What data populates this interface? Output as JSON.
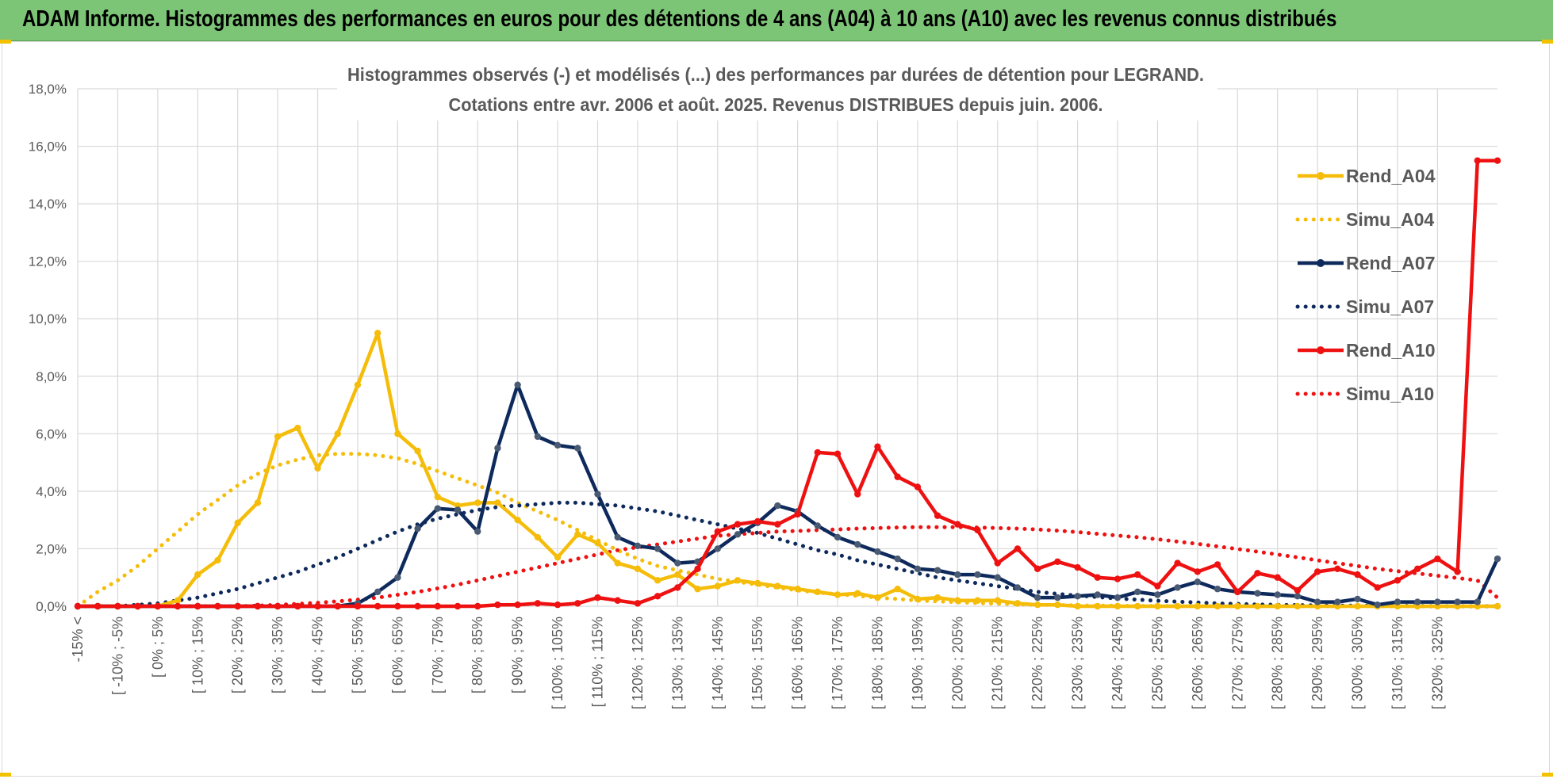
{
  "header": {
    "banner_title": "ADAM Informe. Histogrammes des performances en euros pour des détentions de 4 ans (A04) à 10 ans (A10) avec les revenus connus distribués"
  },
  "colors": {
    "banner": "#7cc576",
    "A04": "#f5bd0a",
    "A07": "#0e2a5c",
    "A07_marker": "#4a5a72",
    "A10": "#ee1111",
    "grid": "#d9d9d9"
  },
  "chart_data": {
    "type": "line",
    "title_line1": "Histogrammes observés (-) et modélisés (...) des performances par durées de détention pour LEGRAND.",
    "title_line2": "Cotations entre avr. 2006 et août. 2025. Revenus DISTRIBUES depuis juin. 2006.",
    "xlabel": "",
    "ylabel": "",
    "ylim": [
      0,
      18
    ],
    "y_ticks": [
      "0,0%",
      "2,0%",
      "4,0%",
      "6,0%",
      "8,0%",
      "10,0%",
      "12,0%",
      "14,0%",
      "16,0%",
      "18,0%"
    ],
    "grid": true,
    "legend_position": "top-right",
    "x_labels": [
      "-15% <",
      "[ -10% ; -5%",
      "[ 0% ; 5%",
      "[ 10% ; 15%",
      "[ 20% ; 25%",
      "[ 30% ; 35%",
      "[ 40% ; 45%",
      "[ 50% ; 55%",
      "[ 60% ; 65%",
      "[ 70% ; 75%",
      "[ 80% ; 85%",
      "[ 90% ; 95%",
      "[ 100% ; 105%",
      "[ 110% ; 115%",
      "[ 120% ; 125%",
      "[ 130% ; 135%",
      "[ 140% ; 145%",
      "[ 150% ; 155%",
      "[ 160% ; 165%",
      "[ 170% ; 175%",
      "[ 180% ; 185%",
      "[ 190% ; 195%",
      "[ 200% ; 205%",
      "[ 210% ; 215%",
      "[ 220% ; 225%",
      "[ 230% ; 235%",
      "[ 240% ; 245%",
      "[ 250% ; 255%",
      "[ 260% ; 265%",
      "[ 270% ; 275%",
      "[ 280% ; 285%",
      "[ 290% ; 295%",
      "[ 300% ; 305%",
      "[ 310% ; 315%",
      "[ 320% ; 325%"
    ],
    "series": [
      {
        "name": "Rend_A04",
        "style": "solid",
        "color": "#f5bd0a",
        "values": [
          0,
          0,
          0,
          0,
          0,
          0.2,
          1.1,
          1.6,
          2.9,
          3.6,
          5.9,
          6.2,
          4.8,
          6.0,
          7.7,
          9.5,
          6.0,
          5.4,
          3.8,
          3.5,
          3.6,
          3.6,
          3.0,
          2.4,
          1.7,
          2.5,
          2.2,
          1.5,
          1.3,
          0.9,
          1.1,
          0.6,
          0.7,
          0.9,
          0.8,
          0.7,
          0.6,
          0.5,
          0.4,
          0.45,
          0.3,
          0.6,
          0.25,
          0.3,
          0.2,
          0.2,
          0.2,
          0.1,
          0.05,
          0.05,
          0,
          0,
          0,
          0,
          0,
          0,
          0,
          0,
          0,
          0,
          0,
          0,
          0,
          0,
          0,
          0,
          0,
          0,
          0,
          0,
          0,
          0
        ]
      },
      {
        "name": "Simu_A04",
        "style": "dotted",
        "color": "#f5bd0a",
        "values": [
          0,
          0.5,
          0.9,
          1.4,
          2.0,
          2.6,
          3.2,
          3.7,
          4.2,
          4.6,
          4.9,
          5.1,
          5.25,
          5.3,
          5.3,
          5.25,
          5.15,
          4.95,
          4.7,
          4.45,
          4.2,
          3.95,
          3.6,
          3.3,
          3.0,
          2.65,
          2.3,
          1.95,
          1.65,
          1.4,
          1.25,
          1.1,
          0.95,
          0.85,
          0.75,
          0.65,
          0.55,
          0.48,
          0.42,
          0.36,
          0.3,
          0.25,
          0.2,
          0.17,
          0.14,
          0.11,
          0.09,
          0.07,
          0.05,
          0.04,
          0.03,
          0.02,
          0.02,
          0.01,
          0.01,
          0,
          0,
          0,
          0,
          0,
          0,
          0,
          0,
          0,
          0,
          0,
          0,
          0,
          0,
          0,
          0,
          0
        ]
      },
      {
        "name": "Rend_A07",
        "style": "solid",
        "color": "#0e2a5c",
        "values": [
          0,
          0,
          0,
          0,
          0,
          0,
          0,
          0,
          0,
          0,
          0,
          0,
          0,
          0,
          0.1,
          0.5,
          1.0,
          2.7,
          3.4,
          3.35,
          2.6,
          5.5,
          7.7,
          5.9,
          5.6,
          5.5,
          3.9,
          2.4,
          2.1,
          2.0,
          1.5,
          1.55,
          2.0,
          2.5,
          2.9,
          3.5,
          3.3,
          2.8,
          2.4,
          2.15,
          1.9,
          1.65,
          1.3,
          1.25,
          1.1,
          1.1,
          1.0,
          0.65,
          0.3,
          0.3,
          0.35,
          0.4,
          0.3,
          0.5,
          0.4,
          0.65,
          0.85,
          0.6,
          0.5,
          0.45,
          0.4,
          0.35,
          0.15,
          0.15,
          0.25,
          0.05,
          0.15,
          0.15,
          0.15,
          0.15,
          0.15,
          1.65
        ]
      },
      {
        "name": "Simu_A07",
        "style": "dotted",
        "color": "#0e2a5c",
        "values": [
          0,
          0,
          0,
          0.05,
          0.1,
          0.2,
          0.3,
          0.45,
          0.6,
          0.8,
          1.0,
          1.2,
          1.45,
          1.7,
          2.0,
          2.3,
          2.6,
          2.85,
          3.05,
          3.2,
          3.35,
          3.45,
          3.5,
          3.55,
          3.6,
          3.6,
          3.55,
          3.5,
          3.4,
          3.3,
          3.15,
          3.0,
          2.85,
          2.7,
          2.55,
          2.35,
          2.15,
          1.95,
          1.8,
          1.6,
          1.45,
          1.3,
          1.15,
          1.0,
          0.9,
          0.8,
          0.7,
          0.6,
          0.5,
          0.43,
          0.37,
          0.32,
          0.27,
          0.23,
          0.19,
          0.16,
          0.13,
          0.1,
          0.08,
          0.06,
          0.05,
          0.04,
          0.03,
          0.02,
          0.02,
          0.01,
          0.01,
          0.01,
          0,
          0,
          0,
          0
        ]
      },
      {
        "name": "Rend_A10",
        "style": "solid",
        "color": "#ee1111",
        "values": [
          0,
          0,
          0,
          0,
          0,
          0,
          0,
          0,
          0,
          0,
          0,
          0,
          0,
          0,
          0,
          0,
          0,
          0,
          0,
          0,
          0,
          0.05,
          0.05,
          0.1,
          0.05,
          0.1,
          0.3,
          0.2,
          0.1,
          0.35,
          0.65,
          1.3,
          2.6,
          2.85,
          2.95,
          2.85,
          3.2,
          5.35,
          5.3,
          3.9,
          5.55,
          4.5,
          4.15,
          3.15,
          2.85,
          2.65,
          1.5,
          2.0,
          1.3,
          1.55,
          1.35,
          1.0,
          0.95,
          1.1,
          0.7,
          1.5,
          1.2,
          1.45,
          0.5,
          1.15,
          1.0,
          0.55,
          1.2,
          1.3,
          1.1,
          0.65,
          0.9,
          1.3,
          1.65,
          1.2,
          15.5,
          15.5
        ]
      },
      {
        "name": "Simu_A10",
        "style": "dotted",
        "color": "#ee1111",
        "values": [
          0,
          0,
          0,
          0,
          0,
          0,
          0,
          0,
          0,
          0.02,
          0.05,
          0.08,
          0.12,
          0.17,
          0.23,
          0.3,
          0.4,
          0.5,
          0.62,
          0.75,
          0.9,
          1.05,
          1.2,
          1.35,
          1.5,
          1.65,
          1.8,
          1.95,
          2.05,
          2.15,
          2.25,
          2.35,
          2.45,
          2.5,
          2.55,
          2.6,
          2.62,
          2.65,
          2.67,
          2.7,
          2.72,
          2.74,
          2.75,
          2.75,
          2.75,
          2.74,
          2.72,
          2.7,
          2.67,
          2.63,
          2.58,
          2.52,
          2.46,
          2.4,
          2.33,
          2.25,
          2.17,
          2.08,
          1.99,
          1.9,
          1.8,
          1.7,
          1.6,
          1.5,
          1.4,
          1.3,
          1.22,
          1.14,
          1.06,
          0.98,
          0.9,
          0.3
        ]
      }
    ]
  }
}
